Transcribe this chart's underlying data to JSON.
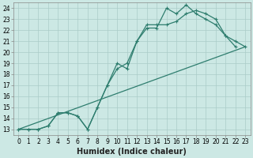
{
  "title": "",
  "xlabel": "Humidex (Indice chaleur)",
  "background_color": "#cce8e4",
  "line_color": "#2e7d6e",
  "grid_color": "#aaccc8",
  "xlim": [
    -0.5,
    23.5
  ],
  "ylim": [
    12.5,
    24.5
  ],
  "xticks": [
    0,
    1,
    2,
    3,
    4,
    5,
    6,
    7,
    8,
    9,
    10,
    11,
    12,
    13,
    14,
    15,
    16,
    17,
    18,
    19,
    20,
    21,
    22,
    23
  ],
  "yticks": [
    13,
    14,
    15,
    16,
    17,
    18,
    19,
    20,
    21,
    22,
    23,
    24
  ],
  "line1_x": [
    0,
    1,
    2,
    3,
    4,
    5,
    6,
    7,
    8,
    9,
    10,
    11,
    12,
    13,
    14,
    15,
    16,
    17,
    18,
    19,
    20,
    21,
    22
  ],
  "line1_y": [
    13,
    13,
    13,
    13.3,
    14.5,
    14.5,
    14.2,
    13,
    15,
    17,
    19,
    18.5,
    21,
    22.2,
    22.2,
    24,
    23.5,
    24.3,
    23.5,
    23,
    22.5,
    21.5,
    20.5
  ],
  "line2_x": [
    0,
    1,
    2,
    3,
    4,
    5,
    6,
    7,
    8,
    9,
    10,
    11,
    12,
    13,
    14,
    15,
    16,
    17,
    18,
    19,
    20,
    21,
    22,
    23
  ],
  "line2_y": [
    13,
    13,
    13,
    13.3,
    14.5,
    14.5,
    14.2,
    13,
    15,
    17,
    18.5,
    19,
    21,
    22.5,
    22.5,
    22.5,
    22.8,
    23.5,
    23.8,
    23.5,
    23,
    21.5,
    21,
    20.5
  ],
  "line3_x": [
    0,
    23
  ],
  "line3_y": [
    13,
    20.5
  ],
  "marker_size": 3,
  "linewidth": 0.9,
  "xlabel_fontsize": 7,
  "tick_fontsize": 5.5
}
